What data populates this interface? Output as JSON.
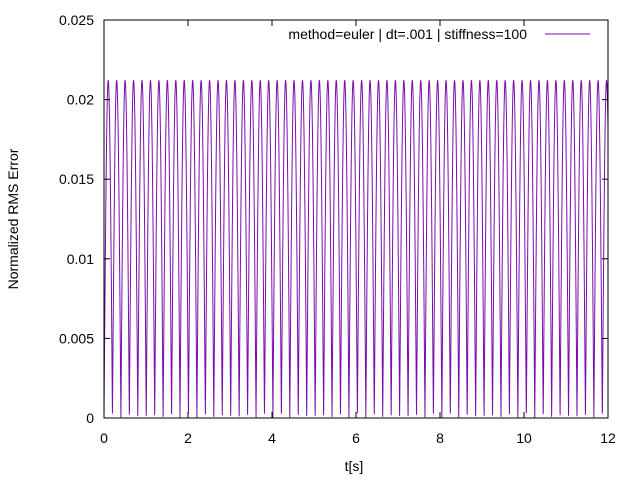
{
  "chart_data": {
    "type": "line",
    "title": "",
    "xlabel": "t[s]",
    "ylabel": "Normalized RMS Error",
    "xlim": [
      0,
      12
    ],
    "ylim": [
      0,
      0.025
    ],
    "x_ticks": [
      0,
      2,
      4,
      6,
      8,
      10,
      12
    ],
    "x_tick_labels": [
      "0",
      "2",
      "4",
      "6",
      "8",
      "10",
      "12"
    ],
    "y_ticks": [
      0,
      0.005,
      0.01,
      0.015,
      0.02,
      0.025
    ],
    "y_tick_labels": [
      "0",
      "0.005",
      "0.01",
      "0.015",
      "0.02",
      "0.025"
    ],
    "grid": false,
    "legend_position": "top-right",
    "series": [
      {
        "name": "method=euler | dt=.001 | stiffness=100",
        "color": "#7b0da8",
        "pattern": "oscillation between 0 and peak",
        "peak_value": 0.0212,
        "period": 0.2011,
        "x_start": 0,
        "x_end": 12,
        "last_value": 0.0117
      }
    ]
  }
}
